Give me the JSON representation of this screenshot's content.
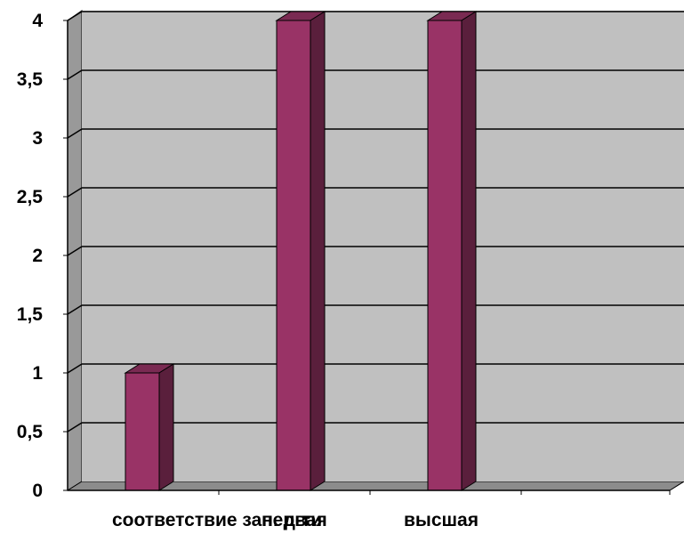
{
  "chart_data": {
    "type": "bar",
    "categories": [
      "соответствие зан. д-ти",
      "первая",
      "высшая",
      ""
    ],
    "series": [
      {
        "values": [
          1,
          4,
          4,
          0
        ]
      }
    ],
    "ylim": [
      0,
      4
    ],
    "yticks": [
      "0",
      "0,5",
      "1",
      "1,5",
      "2",
      "2,5",
      "3",
      "3,5",
      "4"
    ],
    "grid": true,
    "legend": "none",
    "colors": {
      "bar_front": "#993366",
      "bar_side": "#5a1f3c",
      "bar_top": "#7a2a52",
      "wall": "#c0c0c0",
      "wall_side": "#999999",
      "grid": "#000000"
    }
  }
}
